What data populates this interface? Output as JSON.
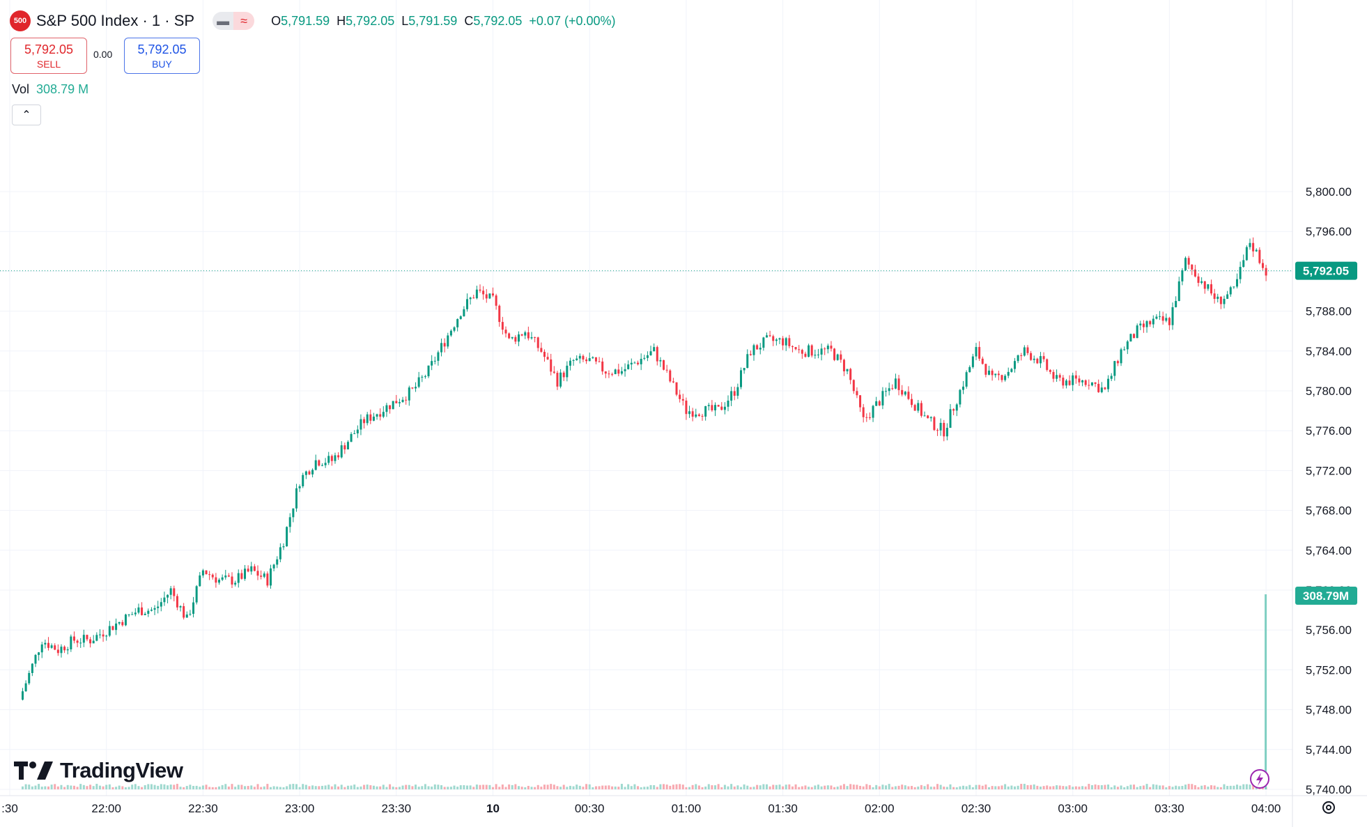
{
  "symbol": {
    "badge": "500",
    "title": "S&P 500 Index · 1 · SP"
  },
  "ohlc": {
    "o_label": "O",
    "o_value": "5,791.59",
    "h_label": "H",
    "h_value": "5,792.05",
    "l_label": "L",
    "l_value": "5,791.59",
    "c_label": "C",
    "c_value": "5,792.05",
    "change": "+0.07 (+0.00%)"
  },
  "trade": {
    "sell_price": "5,792.05",
    "sell_label": "SELL",
    "spread": "0.00",
    "buy_price": "5,792.05",
    "buy_label": "BUY"
  },
  "volume": {
    "label": "Vol",
    "value": "308.79 M"
  },
  "logo": {
    "text": "TradingView"
  },
  "icons": {
    "mode_a": "minus-icon",
    "mode_b": "approx-icon",
    "collapse": "chevron-up-icon",
    "settings": "settings-gear-icon",
    "lightning": "lightning-icon"
  },
  "colors": {
    "up": "#089981",
    "down": "#f23645",
    "last_price_badge": "#089981",
    "volume_badge": "#22ab94",
    "grid": "#f0f3fa"
  },
  "chart_data": {
    "type": "candlestick",
    "title": "S&P 500 Index · 1 · SP",
    "ylim": [
      5740,
      5802
    ],
    "y_ticks": [
      "5,800.00",
      "5,796.00",
      "5,792.00",
      "5,788.00",
      "5,784.00",
      "5,780.00",
      "5,776.00",
      "5,772.00",
      "5,768.00",
      "5,764.00",
      "5,760.00",
      "5,756.00",
      "5,752.00",
      "5,748.00",
      "5,744.00",
      "5,740.00"
    ],
    "x_ticks": [
      ":30",
      "22:00",
      "22:30",
      "23:00",
      "23:30",
      "10",
      "00:30",
      "01:00",
      "01:30",
      "02:00",
      "02:30",
      "03:00",
      "03:30",
      "04:00"
    ],
    "last_price": 5792.05,
    "last_price_label": "5,792.05",
    "volume_label": "308.79M",
    "series": [
      {
        "t": "21:33",
        "v": 5749
      },
      {
        "t": "21:40",
        "v": 5755
      },
      {
        "t": "21:45",
        "v": 5754
      },
      {
        "t": "21:50",
        "v": 5755
      },
      {
        "t": "21:55",
        "v": 5755
      },
      {
        "t": "22:00",
        "v": 5756
      },
      {
        "t": "22:05",
        "v": 5757
      },
      {
        "t": "22:10",
        "v": 5758
      },
      {
        "t": "22:15",
        "v": 5758
      },
      {
        "t": "22:20",
        "v": 5760
      },
      {
        "t": "22:25",
        "v": 5757
      },
      {
        "t": "22:30",
        "v": 5762
      },
      {
        "t": "22:35",
        "v": 5761
      },
      {
        "t": "22:40",
        "v": 5761
      },
      {
        "t": "22:45",
        "v": 5762
      },
      {
        "t": "22:50",
        "v": 5761
      },
      {
        "t": "22:55",
        "v": 5765
      },
      {
        "t": "23:00",
        "v": 5771
      },
      {
        "t": "23:05",
        "v": 5773
      },
      {
        "t": "23:10",
        "v": 5773
      },
      {
        "t": "23:15",
        "v": 5775
      },
      {
        "t": "23:20",
        "v": 5777
      },
      {
        "t": "23:25",
        "v": 5778
      },
      {
        "t": "23:30",
        "v": 5779
      },
      {
        "t": "23:35",
        "v": 5780
      },
      {
        "t": "23:40",
        "v": 5782
      },
      {
        "t": "23:45",
        "v": 5785
      },
      {
        "t": "23:50",
        "v": 5788
      },
      {
        "t": "23:55",
        "v": 5790
      },
      {
        "t": "00:00",
        "v": 5789
      },
      {
        "t": "00:05",
        "v": 5785
      },
      {
        "t": "00:10",
        "v": 5786
      },
      {
        "t": "00:15",
        "v": 5784
      },
      {
        "t": "00:20",
        "v": 5781
      },
      {
        "t": "00:25",
        "v": 5783
      },
      {
        "t": "00:30",
        "v": 5783
      },
      {
        "t": "00:35",
        "v": 5782
      },
      {
        "t": "00:40",
        "v": 5782
      },
      {
        "t": "00:45",
        "v": 5783
      },
      {
        "t": "00:50",
        "v": 5784
      },
      {
        "t": "00:55",
        "v": 5781
      },
      {
        "t": "01:00",
        "v": 5778
      },
      {
        "t": "01:05",
        "v": 5778
      },
      {
        "t": "01:10",
        "v": 5778
      },
      {
        "t": "01:15",
        "v": 5780
      },
      {
        "t": "01:20",
        "v": 5784
      },
      {
        "t": "01:25",
        "v": 5785
      },
      {
        "t": "01:30",
        "v": 5785
      },
      {
        "t": "01:35",
        "v": 5784
      },
      {
        "t": "01:40",
        "v": 5784
      },
      {
        "t": "01:45",
        "v": 5784
      },
      {
        "t": "01:50",
        "v": 5782
      },
      {
        "t": "01:55",
        "v": 5777
      },
      {
        "t": "02:00",
        "v": 5779
      },
      {
        "t": "02:05",
        "v": 5781
      },
      {
        "t": "02:10",
        "v": 5779
      },
      {
        "t": "02:15",
        "v": 5777
      },
      {
        "t": "02:20",
        "v": 5776
      },
      {
        "t": "02:25",
        "v": 5780
      },
      {
        "t": "02:30",
        "v": 5784
      },
      {
        "t": "02:35",
        "v": 5781
      },
      {
        "t": "02:40",
        "v": 5782
      },
      {
        "t": "02:45",
        "v": 5784
      },
      {
        "t": "02:50",
        "v": 5783
      },
      {
        "t": "02:55",
        "v": 5781
      },
      {
        "t": "03:00",
        "v": 5781
      },
      {
        "t": "03:05",
        "v": 5781
      },
      {
        "t": "03:10",
        "v": 5780
      },
      {
        "t": "03:15",
        "v": 5784
      },
      {
        "t": "03:20",
        "v": 5786
      },
      {
        "t": "03:25",
        "v": 5787
      },
      {
        "t": "03:30",
        "v": 5787
      },
      {
        "t": "03:35",
        "v": 5793
      },
      {
        "t": "03:40",
        "v": 5791
      },
      {
        "t": "03:45",
        "v": 5789
      },
      {
        "t": "03:50",
        "v": 5790
      },
      {
        "t": "03:55",
        "v": 5795
      },
      {
        "t": "04:00",
        "v": 5792.05
      }
    ]
  }
}
